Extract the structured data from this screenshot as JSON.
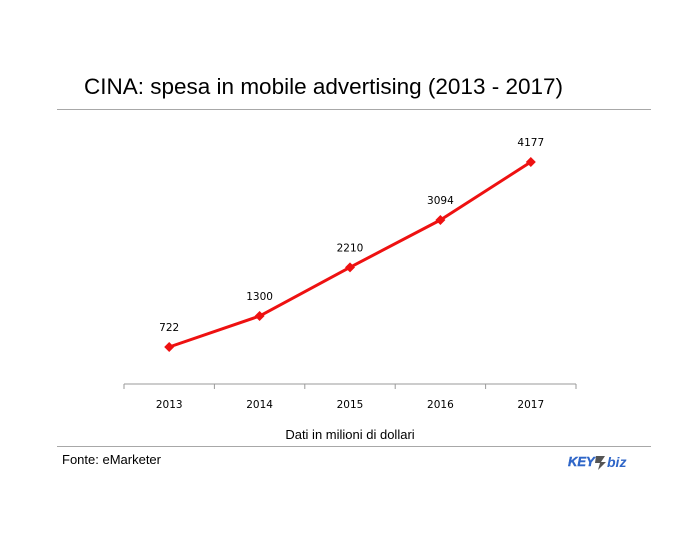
{
  "title": "CINA: spesa in mobile advertising (2013 - 2017)",
  "chart_data": {
    "type": "line",
    "x": [
      "2013",
      "2014",
      "2015",
      "2016",
      "2017"
    ],
    "series": [
      {
        "values": [
          722,
          1300,
          2210,
          3094,
          4177
        ],
        "color": "#ee1111"
      }
    ],
    "data_labels": [
      "722",
      "1300",
      "2210",
      "3094",
      "4177"
    ],
    "xlabel": "Dati in milioni di dollari",
    "ylabel": "",
    "ylim": [
      0,
      4177
    ],
    "grid": false,
    "legend": "none",
    "marker": "diamond"
  },
  "footer": {
    "source": "Fonte: eMarketer",
    "logo_text": "KEY4biz"
  }
}
